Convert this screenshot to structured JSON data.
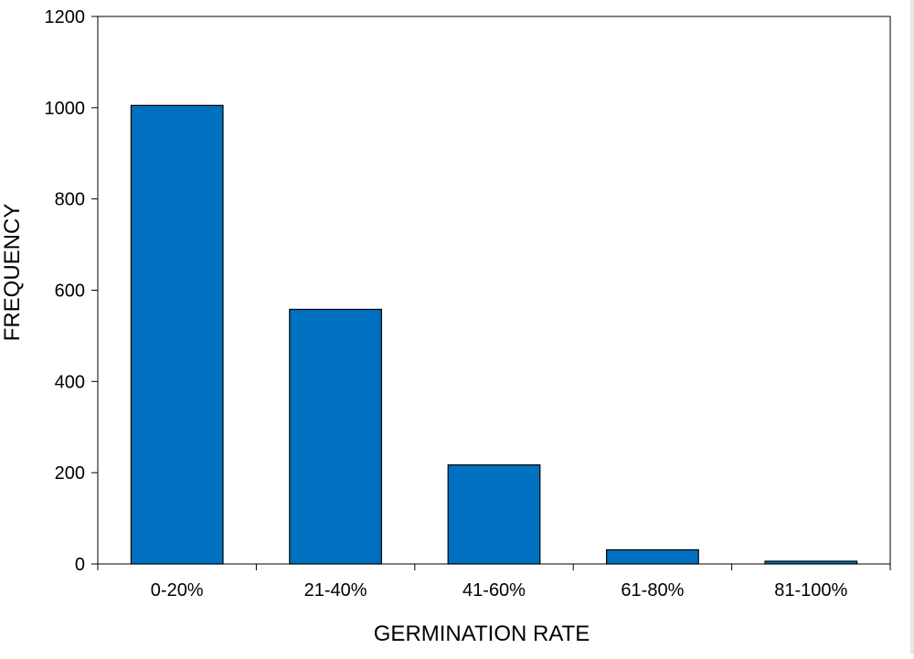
{
  "chart_data": {
    "type": "bar",
    "title": "",
    "xlabel": "GERMINATION RATE",
    "ylabel": "FREQUENCY",
    "categories": [
      "0-20%",
      "21-40%",
      "41-60%",
      "61-80%",
      "81-100%"
    ],
    "values": [
      1005,
      558,
      217,
      31,
      6
    ],
    "ylim": [
      0,
      1200
    ],
    "yticks": [
      0,
      200,
      400,
      600,
      800,
      1000,
      1200
    ],
    "grid": false,
    "legend": "none",
    "colors": {
      "bar_fill": "#0070C0",
      "bar_stroke": "#000000",
      "axis": "#000000",
      "background": "#ffffff"
    }
  }
}
